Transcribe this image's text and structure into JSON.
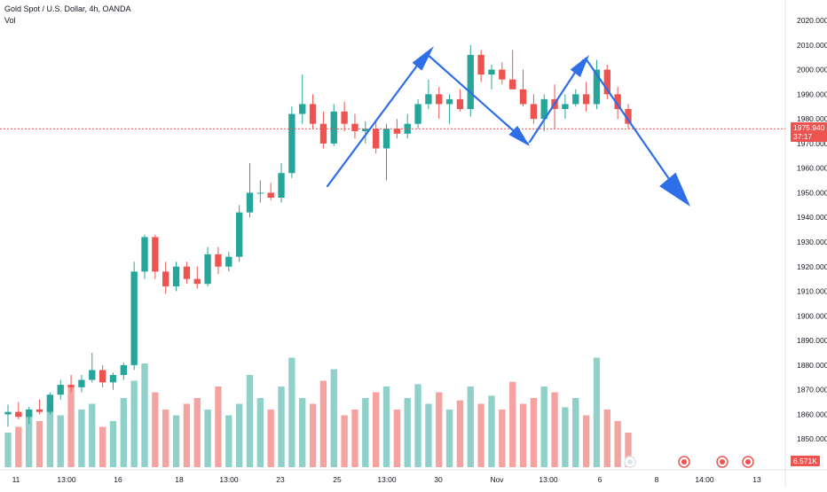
{
  "header": {
    "title": "Gold Spot / U.S. Dollar, 4h, OANDA",
    "volume_label": "Vol"
  },
  "price_tag": {
    "price": "1975.940",
    "countdown": "37:17"
  },
  "volume_tag": {
    "value": "6.571K"
  },
  "colors": {
    "up": "#26a69a",
    "down": "#ef5350",
    "vol_up": "#8fd0c8",
    "vol_down": "#f5a3a1",
    "arrow": "#2e6fe8",
    "price_line": "#ef5350",
    "price_tag_bg": "#ef5350",
    "volume_tag_bg": "#ef5350"
  },
  "chart_data": {
    "type": "candlestick",
    "title": "Gold Spot / U.S. Dollar, 4h, OANDA",
    "y_range": [
      1840,
      2020
    ],
    "y_ticks": [
      "1850.000",
      "1860.000",
      "1870.000",
      "1880.000",
      "1890.000",
      "1900.000",
      "1910.000",
      "1920.000",
      "1930.000",
      "1940.000",
      "1950.000",
      "1960.000",
      "1970.000",
      "1980.000",
      "1990.000",
      "2000.000",
      "2010.000",
      "2020.000"
    ],
    "x_ticks": [
      "11",
      "13:00",
      "16",
      "18",
      "13:00",
      "23",
      "25",
      "13:00",
      "30",
      "Nov",
      "13:00",
      "6",
      "8",
      "14:00",
      "13"
    ],
    "last_price": 1975.94,
    "ohlc_approx": [
      {
        "o": 1860,
        "h": 1864,
        "l": 1855,
        "c": 1861
      },
      {
        "o": 1861,
        "h": 1865,
        "l": 1858,
        "c": 1859
      },
      {
        "o": 1859,
        "h": 1863,
        "l": 1856,
        "c": 1862
      },
      {
        "o": 1862,
        "h": 1866,
        "l": 1860,
        "c": 1861
      },
      {
        "o": 1861,
        "h": 1869,
        "l": 1860,
        "c": 1868
      },
      {
        "o": 1868,
        "h": 1874,
        "l": 1866,
        "c": 1872
      },
      {
        "o": 1872,
        "h": 1876,
        "l": 1869,
        "c": 1871
      },
      {
        "o": 1871,
        "h": 1876,
        "l": 1869,
        "c": 1874
      },
      {
        "o": 1874,
        "h": 1885,
        "l": 1873,
        "c": 1878
      },
      {
        "o": 1878,
        "h": 1880,
        "l": 1871,
        "c": 1873
      },
      {
        "o": 1873,
        "h": 1877,
        "l": 1870,
        "c": 1876
      },
      {
        "o": 1876,
        "h": 1881,
        "l": 1874,
        "c": 1880
      },
      {
        "o": 1880,
        "h": 1922,
        "l": 1878,
        "c": 1918
      },
      {
        "o": 1918,
        "h": 1933,
        "l": 1915,
        "c": 1932
      },
      {
        "o": 1932,
        "h": 1933,
        "l": 1915,
        "c": 1918
      },
      {
        "o": 1918,
        "h": 1922,
        "l": 1909,
        "c": 1912
      },
      {
        "o": 1912,
        "h": 1922,
        "l": 1910,
        "c": 1920
      },
      {
        "o": 1920,
        "h": 1922,
        "l": 1913,
        "c": 1915
      },
      {
        "o": 1915,
        "h": 1920,
        "l": 1911,
        "c": 1913
      },
      {
        "o": 1913,
        "h": 1928,
        "l": 1912,
        "c": 1925
      },
      {
        "o": 1925,
        "h": 1928,
        "l": 1917,
        "c": 1920
      },
      {
        "o": 1920,
        "h": 1926,
        "l": 1918,
        "c": 1924
      },
      {
        "o": 1924,
        "h": 1945,
        "l": 1922,
        "c": 1942
      },
      {
        "o": 1942,
        "h": 1962,
        "l": 1940,
        "c": 1950
      },
      {
        "o": 1950,
        "h": 1955,
        "l": 1946,
        "c": 1950
      },
      {
        "o": 1950,
        "h": 1954,
        "l": 1947,
        "c": 1948
      },
      {
        "o": 1948,
        "h": 1962,
        "l": 1946,
        "c": 1958
      },
      {
        "o": 1958,
        "h": 1985,
        "l": 1956,
        "c": 1982
      },
      {
        "o": 1982,
        "h": 1998,
        "l": 1978,
        "c": 1986
      },
      {
        "o": 1986,
        "h": 1990,
        "l": 1976,
        "c": 1978
      },
      {
        "o": 1978,
        "h": 1983,
        "l": 1968,
        "c": 1970
      },
      {
        "o": 1970,
        "h": 1986,
        "l": 1969,
        "c": 1983
      },
      {
        "o": 1983,
        "h": 1987,
        "l": 1975,
        "c": 1978
      },
      {
        "o": 1978,
        "h": 1982,
        "l": 1972,
        "c": 1975
      },
      {
        "o": 1975,
        "h": 1979,
        "l": 1970,
        "c": 1976
      },
      {
        "o": 1976,
        "h": 1979,
        "l": 1966,
        "c": 1968
      },
      {
        "o": 1968,
        "h": 1978,
        "l": 1955,
        "c": 1976
      },
      {
        "o": 1976,
        "h": 1980,
        "l": 1972,
        "c": 1974
      },
      {
        "o": 1974,
        "h": 1982,
        "l": 1972,
        "c": 1978
      },
      {
        "o": 1978,
        "h": 1988,
        "l": 1976,
        "c": 1986
      },
      {
        "o": 1986,
        "h": 1996,
        "l": 1984,
        "c": 1990
      },
      {
        "o": 1990,
        "h": 1993,
        "l": 1980,
        "c": 1986
      },
      {
        "o": 1986,
        "h": 1990,
        "l": 1978,
        "c": 1988
      },
      {
        "o": 1988,
        "h": 1992,
        "l": 1983,
        "c": 1984
      },
      {
        "o": 1984,
        "h": 2010,
        "l": 1981,
        "c": 2006
      },
      {
        "o": 2006,
        "h": 2008,
        "l": 1995,
        "c": 1998
      },
      {
        "o": 1998,
        "h": 2002,
        "l": 1992,
        "c": 2000
      },
      {
        "o": 2000,
        "h": 2003,
        "l": 1994,
        "c": 1996
      },
      {
        "o": 1996,
        "h": 2008,
        "l": 1994,
        "c": 1992
      },
      {
        "o": 1992,
        "h": 2000,
        "l": 1985,
        "c": 1986
      },
      {
        "o": 1986,
        "h": 1990,
        "l": 1978,
        "c": 1980
      },
      {
        "o": 1980,
        "h": 1990,
        "l": 1975,
        "c": 1988
      },
      {
        "o": 1988,
        "h": 1994,
        "l": 1976,
        "c": 1984
      },
      {
        "o": 1984,
        "h": 1990,
        "l": 1980,
        "c": 1986
      },
      {
        "o": 1986,
        "h": 1992,
        "l": 1985,
        "c": 1990
      },
      {
        "o": 1990,
        "h": 1995,
        "l": 1983,
        "c": 1986
      },
      {
        "o": 1986,
        "h": 2004,
        "l": 1984,
        "c": 2000
      },
      {
        "o": 2000,
        "h": 2002,
        "l": 1988,
        "c": 1990
      },
      {
        "o": 1990,
        "h": 1993,
        "l": 1980,
        "c": 1984
      },
      {
        "o": 1984,
        "h": 1986,
        "l": 1976,
        "c": 1978
      }
    ],
    "volume_relative": [
      0.3,
      0.35,
      0.5,
      0.4,
      0.6,
      0.45,
      0.7,
      0.5,
      0.55,
      0.35,
      0.4,
      0.6,
      0.75,
      0.9,
      0.65,
      0.5,
      0.45,
      0.55,
      0.6,
      0.5,
      0.7,
      0.45,
      0.55,
      0.8,
      0.6,
      0.5,
      0.7,
      0.95,
      0.6,
      0.55,
      0.75,
      0.85,
      0.45,
      0.5,
      0.6,
      0.65,
      0.7,
      0.5,
      0.6,
      0.72,
      0.55,
      0.65,
      0.5,
      0.58,
      0.7,
      0.55,
      0.62,
      0.5,
      0.74,
      0.55,
      0.6,
      0.7,
      0.65,
      0.52,
      0.6,
      0.45,
      0.95,
      0.5,
      0.4,
      0.3
    ],
    "annotations": "hand-drawn blue arrows: rise to 2010, fall to ~1970, rise to ~2005, projected drop to ~1945"
  }
}
